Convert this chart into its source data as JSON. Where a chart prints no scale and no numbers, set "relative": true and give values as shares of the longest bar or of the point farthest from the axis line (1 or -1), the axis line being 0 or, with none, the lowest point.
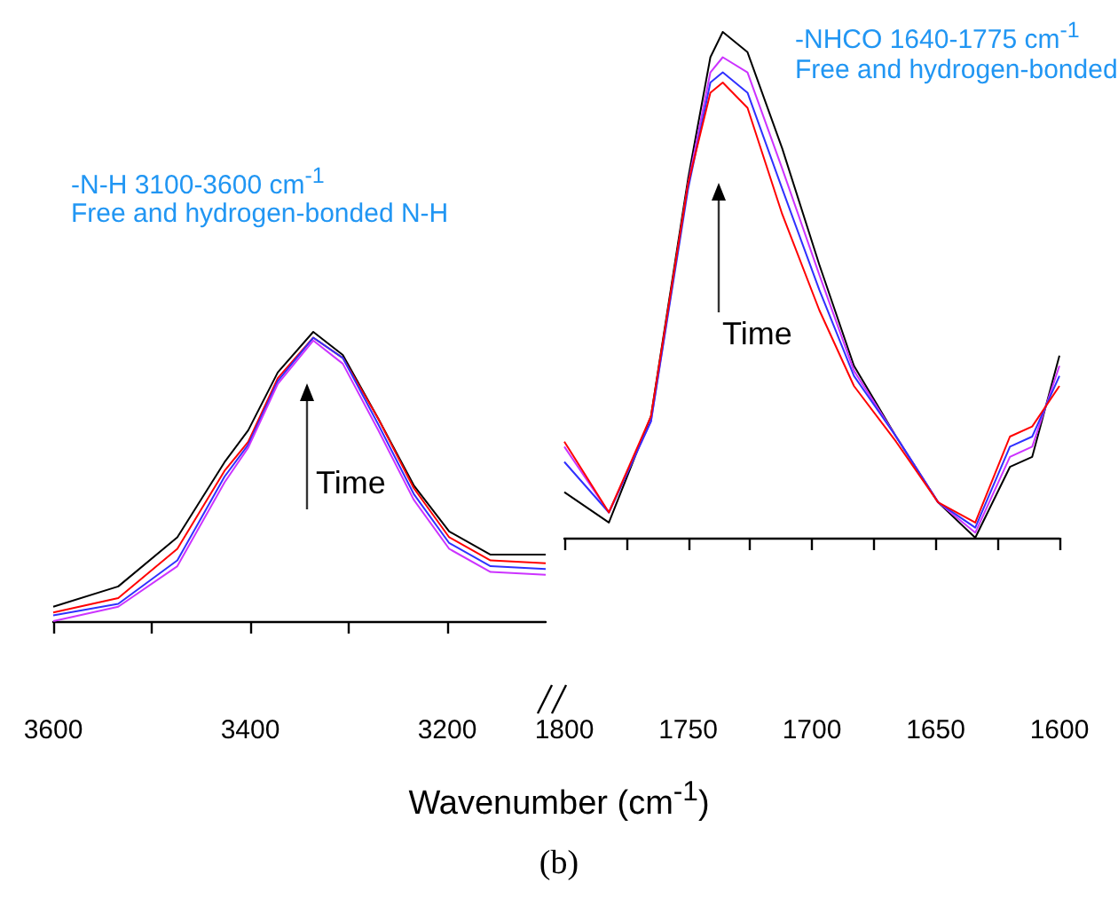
{
  "chart_data": [
    {
      "type": "line",
      "relative": true,
      "marker": "none",
      "annotations": [
        "-N-H 3100-3600 cm$^{-1}$",
        "Free and hydrogen-bonded N-H",
        "Time"
      ],
      "x": [
        3600,
        3534,
        3474,
        3426,
        3402,
        3372,
        3336,
        3306,
        3270,
        3234,
        3198,
        3156,
        3100
      ],
      "xlim": [
        3600,
        3100
      ],
      "xticks": [
        3600,
        {
          "value": 3500,
          "label": null
        },
        3400,
        {
          "value": 3300,
          "label": null
        },
        3200
      ],
      "series": [
        {
          "color": "#000000",
          "values": [
            0.05,
            0.12,
            0.29,
            0.55,
            0.66,
            0.86,
            1.0,
            0.92,
            0.7,
            0.47,
            0.31,
            0.23,
            0.23
          ]
        },
        {
          "color": "#ff0000",
          "values": [
            0.03,
            0.08,
            0.25,
            0.52,
            0.62,
            0.84,
            0.98,
            0.91,
            0.7,
            0.46,
            0.29,
            0.21,
            0.2
          ]
        },
        {
          "color": "#3030ff",
          "values": [
            0.02,
            0.06,
            0.21,
            0.5,
            0.61,
            0.83,
            0.98,
            0.91,
            0.68,
            0.44,
            0.27,
            0.19,
            0.18
          ]
        },
        {
          "color": "#cc33ff",
          "values": [
            0.0,
            0.05,
            0.19,
            0.48,
            0.6,
            0.82,
            0.97,
            0.89,
            0.66,
            0.42,
            0.25,
            0.17,
            0.16
          ]
        }
      ]
    },
    {
      "type": "line",
      "relative": true,
      "marker": "none",
      "xlabel": "Wavenumber (cm$^{-1}$)",
      "annotations": [
        "-NHCO 1640-1775 cm$^{-1}$",
        "Free and hydrogen-bonded",
        "Time",
        "(b)"
      ],
      "x": [
        1800,
        1782,
        1765,
        1750,
        1741,
        1736,
        1726,
        1712,
        1697,
        1683,
        1666,
        1649,
        1634,
        1620,
        1611,
        1600
      ],
      "xlim": [
        1800,
        1600
      ],
      "xticks": [
        1800,
        {
          "value": 1775,
          "label": null
        },
        1750,
        {
          "value": 1725,
          "label": null
        },
        1700,
        {
          "value": 1675,
          "label": null
        },
        1650,
        {
          "value": 1625,
          "label": null
        },
        1600
      ],
      "series": [
        {
          "color": "#000000",
          "values": [
            0.09,
            0.03,
            0.24,
            0.71,
            0.95,
            1.0,
            0.96,
            0.77,
            0.54,
            0.34,
            0.2,
            0.07,
            0.0,
            0.14,
            0.16,
            0.36
          ]
        },
        {
          "color": "#cc33ff",
          "values": [
            0.18,
            0.05,
            0.23,
            0.7,
            0.92,
            0.95,
            0.92,
            0.73,
            0.52,
            0.33,
            0.2,
            0.07,
            0.01,
            0.16,
            0.18,
            0.34
          ]
        },
        {
          "color": "#3030ff",
          "values": [
            0.15,
            0.05,
            0.23,
            0.69,
            0.9,
            0.92,
            0.88,
            0.69,
            0.49,
            0.32,
            0.2,
            0.07,
            0.02,
            0.18,
            0.2,
            0.32
          ]
        },
        {
          "color": "#ff0000",
          "values": [
            0.19,
            0.05,
            0.24,
            0.7,
            0.88,
            0.9,
            0.85,
            0.64,
            0.45,
            0.3,
            0.19,
            0.07,
            0.03,
            0.2,
            0.22,
            0.3
          ]
        }
      ]
    }
  ]
}
